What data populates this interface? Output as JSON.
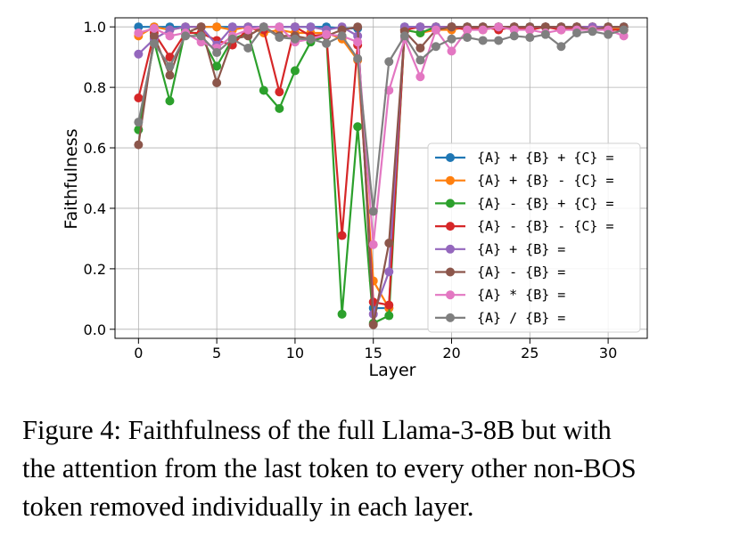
{
  "chart_data": {
    "type": "line",
    "xlabel": "Layer",
    "ylabel": "Faithfulness",
    "xlim": [
      -1.5,
      32.5
    ],
    "ylim": [
      -0.03,
      1.03
    ],
    "xticks": [
      0,
      5,
      10,
      15,
      20,
      25,
      30
    ],
    "yticks": [
      0.0,
      0.2,
      0.4,
      0.6,
      0.8,
      1.0
    ],
    "ytick_labels": [
      "0.0",
      "0.2",
      "0.4",
      "0.6",
      "0.8",
      "1.0"
    ],
    "grid": true,
    "legend_position": "center-right",
    "x": [
      0,
      1,
      2,
      3,
      4,
      5,
      6,
      7,
      8,
      9,
      10,
      11,
      12,
      13,
      14,
      15,
      16,
      17,
      18,
      19,
      20,
      21,
      22,
      23,
      24,
      25,
      26,
      27,
      28,
      29,
      30,
      31
    ],
    "series": [
      {
        "name": "{A} + {B} + {C} =",
        "color": "#1f77b4",
        "values": [
          1.0,
          1.0,
          1.0,
          1.0,
          1.0,
          1.0,
          1.0,
          1.0,
          1.0,
          1.0,
          1.0,
          1.0,
          1.0,
          0.995,
          0.995,
          0.07,
          0.07,
          1.0,
          1.0,
          1.0,
          1.0,
          1.0,
          1.0,
          1.0,
          1.0,
          1.0,
          1.0,
          1.0,
          1.0,
          1.0,
          1.0,
          1.0
        ]
      },
      {
        "name": "{A} + {B} - {C} =",
        "color": "#ff7f0e",
        "values": [
          0.97,
          1.0,
          0.99,
          1.0,
          1.0,
          1.0,
          0.99,
          1.0,
          0.98,
          0.99,
          0.98,
          0.98,
          0.98,
          0.96,
          0.89,
          0.16,
          0.07,
          0.99,
          0.98,
          0.99,
          0.99,
          1.0,
          0.99,
          1.0,
          1.0,
          1.0,
          1.0,
          1.0,
          1.0,
          1.0,
          1.0,
          0.99
        ]
      },
      {
        "name": "{A} - {B} + {C} =",
        "color": "#2ca02c",
        "values": [
          0.66,
          0.95,
          0.755,
          0.99,
          0.97,
          0.87,
          0.96,
          0.98,
          0.79,
          0.73,
          0.855,
          0.95,
          0.97,
          0.05,
          0.67,
          0.02,
          0.045,
          0.99,
          0.98,
          1.0,
          1.0,
          1.0,
          1.0,
          1.0,
          1.0,
          1.0,
          1.0,
          1.0,
          1.0,
          1.0,
          1.0,
          1.0
        ]
      },
      {
        "name": "{A} - {B} - {C} =",
        "color": "#d62728",
        "values": [
          0.765,
          0.98,
          0.9,
          0.98,
          0.98,
          0.955,
          0.94,
          0.995,
          0.99,
          0.785,
          1.0,
          0.97,
          0.975,
          0.31,
          0.94,
          0.09,
          0.08,
          0.99,
          1.0,
          1.0,
          1.0,
          0.99,
          1.0,
          0.99,
          1.0,
          0.99,
          1.0,
          0.99,
          1.0,
          1.0,
          0.99,
          0.99
        ]
      },
      {
        "name": "{A} + {B} =",
        "color": "#9467bd",
        "values": [
          0.91,
          0.96,
          0.99,
          1.0,
          1.0,
          0.94,
          1.0,
          1.0,
          1.0,
          1.0,
          1.0,
          1.0,
          0.99,
          1.0,
          0.97,
          0.05,
          0.19,
          1.0,
          1.0,
          1.0,
          1.0,
          1.0,
          1.0,
          1.0,
          1.0,
          1.0,
          1.0,
          1.0,
          1.0,
          1.0,
          1.0,
          1.0
        ]
      },
      {
        "name": "{A} - {B} =",
        "color": "#8c564b",
        "values": [
          0.61,
          0.97,
          0.84,
          0.98,
          1.0,
          0.815,
          0.96,
          0.97,
          1.0,
          0.97,
          0.97,
          0.96,
          0.97,
          0.99,
          1.0,
          0.015,
          0.285,
          0.985,
          0.93,
          0.99,
          1.0,
          1.0,
          1.0,
          1.0,
          1.0,
          1.0,
          1.0,
          1.0,
          1.0,
          0.99,
          1.0,
          1.0
        ]
      },
      {
        "name": "{A} * {B} =",
        "color": "#e377c2",
        "values": [
          0.98,
          0.995,
          0.97,
          0.98,
          0.95,
          0.93,
          0.97,
          0.99,
          1.0,
          1.0,
          0.95,
          0.96,
          0.975,
          0.97,
          0.95,
          0.28,
          0.79,
          0.96,
          0.835,
          0.99,
          0.92,
          0.99,
          0.99,
          1.0,
          0.99,
          0.99,
          0.98,
          0.99,
          0.99,
          0.99,
          0.99,
          0.97
        ]
      },
      {
        "name": "{A} / {B} =",
        "color": "#7f7f7f",
        "values": [
          0.685,
          0.945,
          0.87,
          0.97,
          0.97,
          0.915,
          0.96,
          0.93,
          1.0,
          0.965,
          0.96,
          0.96,
          0.945,
          0.97,
          0.895,
          0.39,
          0.885,
          0.97,
          0.89,
          0.935,
          0.96,
          0.965,
          0.955,
          0.955,
          0.97,
          0.965,
          0.975,
          0.935,
          0.98,
          0.985,
          0.975,
          0.99
        ]
      }
    ]
  },
  "caption": {
    "line1": "Figure 4: Faithfulness of the full Llama-3-8B but with",
    "line2": "the attention from the last token to every other non-BOS",
    "line3": "token removed individually in each layer."
  }
}
